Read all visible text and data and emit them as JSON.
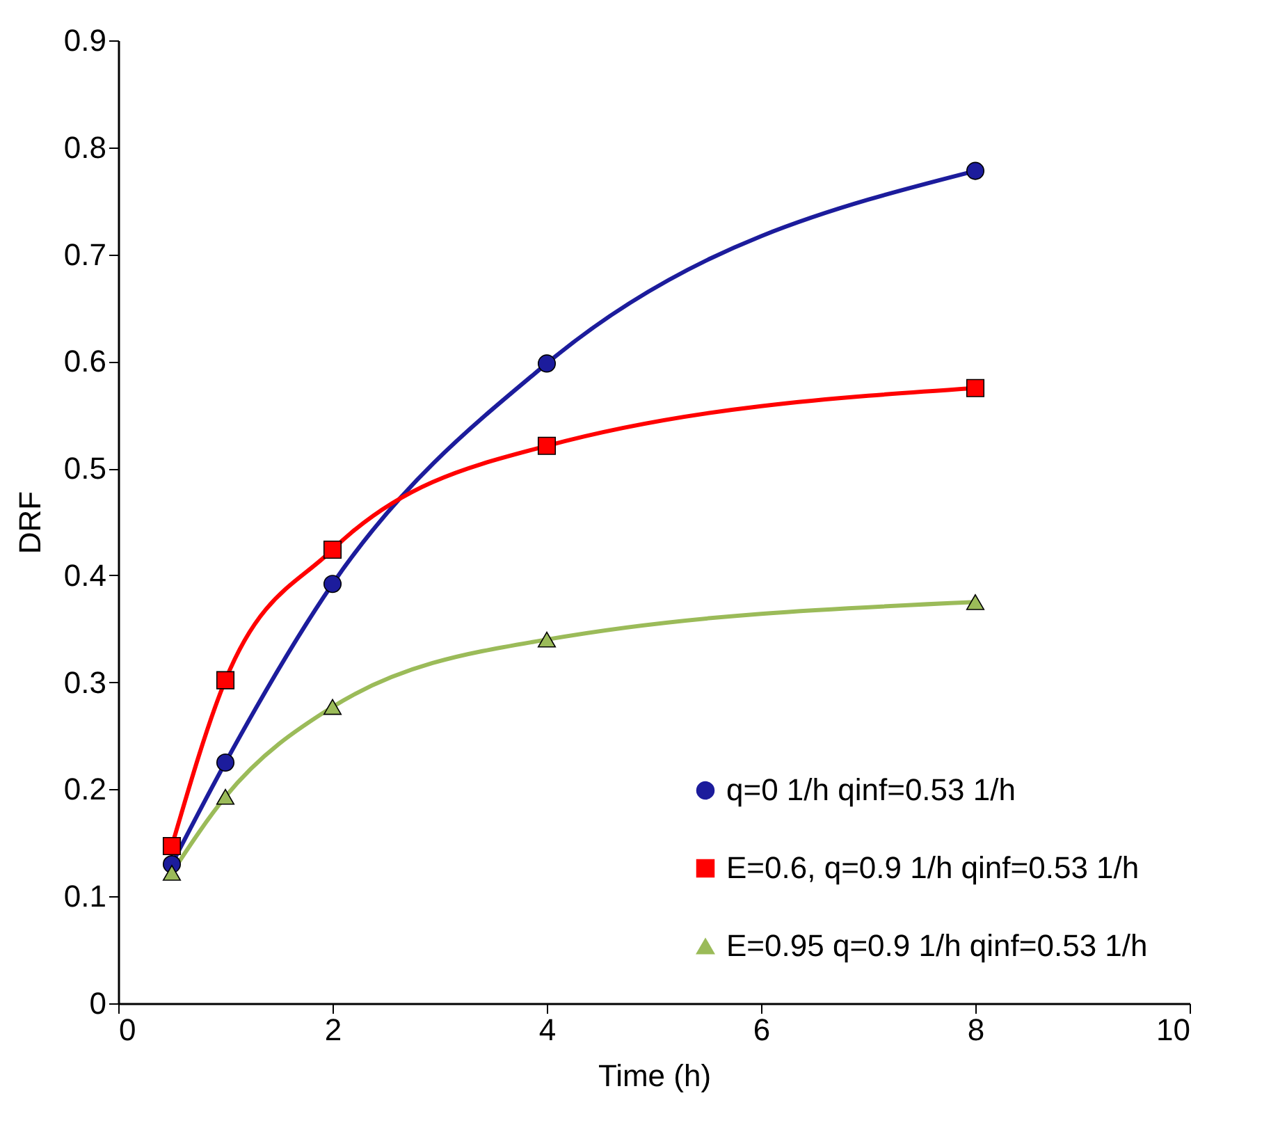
{
  "chart_data": {
    "type": "line",
    "xlabel": "Time (h)",
    "ylabel": "DRF",
    "xlim": [
      0,
      10
    ],
    "xticks": [
      0,
      2,
      4,
      6,
      8,
      10
    ],
    "ylim": [
      0,
      0.9
    ],
    "yticks": [
      0,
      0.1,
      0.2,
      0.3,
      0.4,
      0.5,
      0.6,
      0.7,
      0.8,
      0.9
    ],
    "grid": false,
    "legend": "bottom right",
    "x": [
      0.5,
      1,
      2,
      4,
      8
    ],
    "series": [
      {
        "name": "q=0 1/h  qinf=0.53 1/h",
        "color": "#1c1c9c",
        "marker": "circle",
        "values": [
          0.13,
          0.225,
          0.392,
          0.598,
          0.778
        ]
      },
      {
        "name": "E=0.6, q=0.9 1/h qinf=0.53 1/h",
        "color": "#ff0000",
        "marker": "square",
        "values": [
          0.147,
          0.302,
          0.424,
          0.521,
          0.575
        ]
      },
      {
        "name": "E=0.95 q=0.9 1/h qinf=0.53 1/h",
        "color": "#9bbb59",
        "marker": "triangle",
        "values": [
          0.122,
          0.193,
          0.277,
          0.34,
          0.375
        ]
      }
    ]
  }
}
